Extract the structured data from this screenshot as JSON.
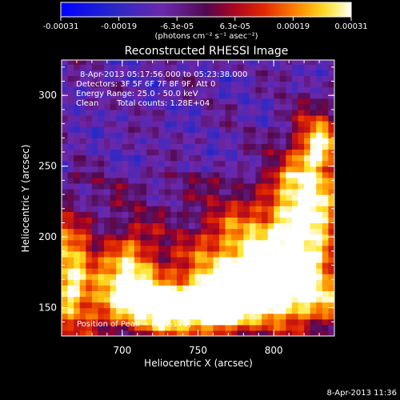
{
  "chart_data": {
    "type": "heatmap",
    "title": "Reconstructed RHESSI Image",
    "xlabel": "Heliocentric X (arcsec)",
    "ylabel": "Heliocentric Y (arcsec)",
    "xlim": [
      660,
      840
    ],
    "ylim": [
      130,
      325
    ],
    "x_ticks": [
      "700",
      "750",
      "800"
    ],
    "y_ticks": [
      "150",
      "200",
      "250",
      "300"
    ],
    "colorbar": {
      "colormap": "hot",
      "range": [
        -0.00031,
        0.00031
      ],
      "tick_labels": [
        "-0.00031",
        "-0.00019",
        "-6.3e-05",
        "6.3e-05",
        "0.00019",
        "0.00031"
      ],
      "unit_text": "(photons cm⁻² s⁻¹ asec⁻²)"
    },
    "annotations": {
      "time_range": "8-Apr-2013 05:17:56.000 to 05:23:38.000",
      "detectors": "Detectors: 3F 5F 6F 7F 8F 9F, Att 0",
      "energy": "Energy Range: 25.0 - 50.0 keV",
      "method": "Clean",
      "counts": "Total counts: 1.28E+04",
      "peak": "Position of Peak = [652,171]"
    },
    "timestamp": "8-Apr-2013 11:36",
    "peak_position": [
      652,
      171
    ]
  }
}
